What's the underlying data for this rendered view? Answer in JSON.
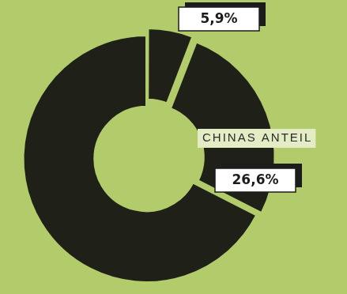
{
  "chart_data": {
    "type": "doughnut",
    "categories": [
      null,
      "CHINAS ANTEIL",
      null
    ],
    "values": [
      5.9,
      26.6,
      67.5
    ],
    "value_labels": [
      "5,9%",
      "26,6%",
      null
    ],
    "colors": [
      "#1f2119",
      "#1f2119",
      "#1f2119"
    ],
    "data_labels": true
  }
}
